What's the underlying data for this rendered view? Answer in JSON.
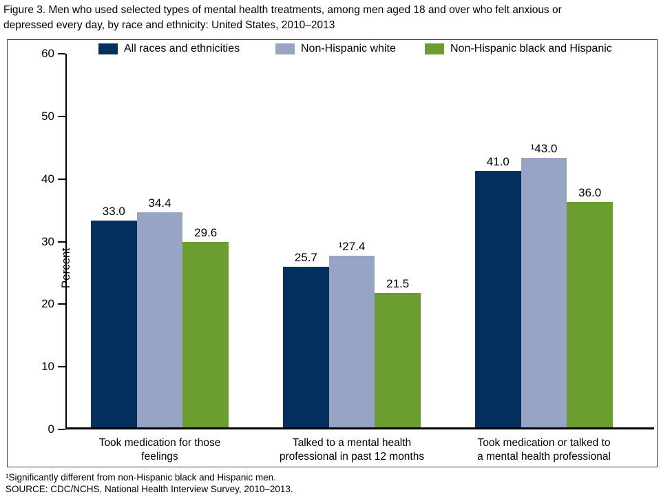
{
  "title_lines": [
    "Figure 3. Men who used selected types of mental health treatments, among men aged 18 and over who felt anxious or",
    "depressed every day, by race and ethnicity: United States, 2010–2013"
  ],
  "chart_data": {
    "type": "bar",
    "title": "Figure 3. Men who used selected types of mental health treatments, among men aged 18 and over who felt anxious or depressed every day, by race and ethnicity: United States, 2010–2013",
    "xlabel": "",
    "ylabel": "Percent",
    "ylim": [
      0,
      60
    ],
    "yticks": [
      0,
      10,
      20,
      30,
      40,
      50,
      60
    ],
    "grid": false,
    "legend_position": "top",
    "categories": [
      "Took medication for those feelings",
      "Talked to a mental health professional in past 12 months",
      "Took medication or talked to a mental health professional"
    ],
    "category_label_lines": [
      [
        "Took medication for those",
        "feelings"
      ],
      [
        "Talked to a mental health",
        "professional in past 12 months"
      ],
      [
        "Took medication or talked to",
        "a mental health professional"
      ]
    ],
    "series": [
      {
        "name": "All races and ethnicities",
        "color": "#03305f",
        "values": [
          33.0,
          25.7,
          41.0
        ],
        "value_labels": [
          "33.0",
          "25.7",
          "41.0"
        ]
      },
      {
        "name": "Non-Hispanic white",
        "color": "#98a4c6",
        "values": [
          34.4,
          27.4,
          43.0
        ],
        "value_labels": [
          "34.4",
          "¹27.4",
          "¹43.0"
        ]
      },
      {
        "name": "Non-Hispanic black and Hispanic",
        "color": "#6b9d2f",
        "values": [
          29.6,
          21.5,
          36.0
        ],
        "value_labels": [
          "29.6",
          "21.5",
          "36.0"
        ]
      }
    ]
  },
  "footnotes": [
    "¹Significantly different from non-Hispanic black and Hispanic men.",
    "SOURCE: CDC/NCHS, National Health Interview Survey, 2010–2013."
  ]
}
